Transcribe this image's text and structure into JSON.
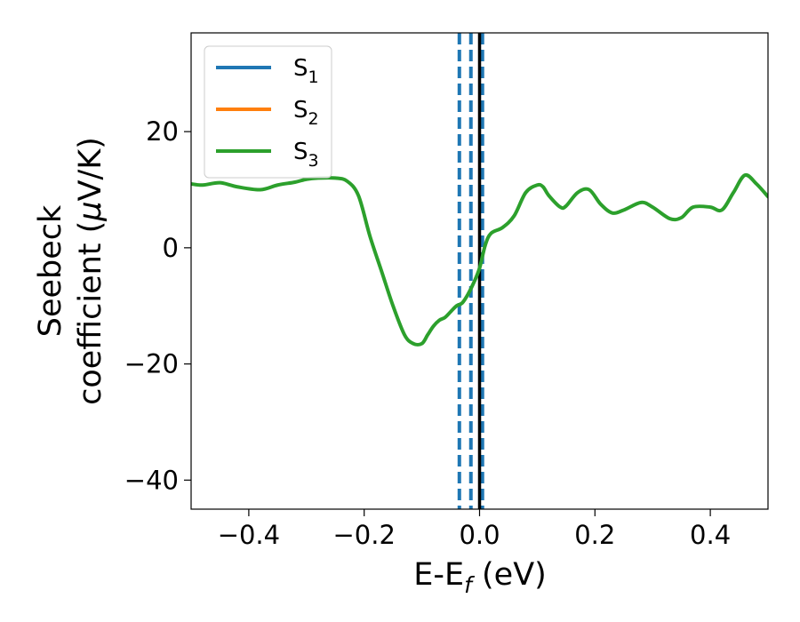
{
  "chart_data": {
    "type": "line",
    "xlabel": {
      "main": "E-E",
      "sub": "f",
      "unit": " (eV)"
    },
    "ylabel": {
      "line1": "Seebeck",
      "line2_pre": "coefficient  (",
      "mu": "μ",
      "line2_post": "V/K)"
    },
    "xlim": [
      -0.5,
      0.5
    ],
    "ylim": [
      -45,
      37
    ],
    "x_ticks": [
      -0.4,
      -0.2,
      0.0,
      0.2,
      0.4
    ],
    "x_tick_labels": [
      "−0.4",
      "−0.2",
      "0.0",
      "0.2",
      "0.4"
    ],
    "y_ticks": [
      -40,
      -20,
      0,
      20
    ],
    "y_tick_labels": [
      "−40",
      "−20",
      "0",
      "20"
    ],
    "grid": false,
    "legend_position": "top-left",
    "series": [
      {
        "name": "S",
        "sub": "1",
        "color": "#1f77b4",
        "x": [],
        "y": []
      },
      {
        "name": "S",
        "sub": "2",
        "color": "#ff7f0e",
        "x": [],
        "y": []
      },
      {
        "name": "S",
        "sub": "3",
        "color": "#2ca02c",
        "x": [
          -0.5,
          -0.48,
          -0.45,
          -0.42,
          -0.38,
          -0.35,
          -0.32,
          -0.3,
          -0.28,
          -0.25,
          -0.23,
          -0.21,
          -0.19,
          -0.17,
          -0.15,
          -0.13,
          -0.115,
          -0.1,
          -0.09,
          -0.08,
          -0.07,
          -0.06,
          -0.05,
          -0.04,
          -0.03,
          -0.02,
          -0.01,
          0.0,
          0.01,
          0.02,
          0.04,
          0.06,
          0.08,
          0.1,
          0.11,
          0.12,
          0.14,
          0.15,
          0.17,
          0.19,
          0.21,
          0.23,
          0.25,
          0.28,
          0.3,
          0.33,
          0.35,
          0.37,
          0.4,
          0.42,
          0.44,
          0.46,
          0.48,
          0.5
        ],
        "y": [
          11.0,
          10.8,
          11.2,
          10.5,
          10.0,
          10.8,
          11.3,
          11.8,
          12.0,
          12.0,
          11.5,
          9.0,
          2.0,
          -4.0,
          -10.0,
          -15.0,
          -16.5,
          -16.5,
          -15.0,
          -13.5,
          -12.5,
          -12.0,
          -11.0,
          -10.0,
          -9.5,
          -8.0,
          -6.0,
          -3.5,
          0.5,
          2.5,
          3.5,
          5.5,
          9.5,
          10.8,
          10.5,
          9.0,
          7.0,
          7.2,
          9.5,
          10.0,
          7.5,
          6.0,
          6.5,
          7.8,
          7.0,
          5.0,
          5.2,
          7.0,
          7.0,
          6.5,
          9.5,
          12.5,
          11.0,
          8.8
        ]
      }
    ],
    "vertical_lines": [
      {
        "x": -0.035,
        "color": "#1f77b4",
        "style": "dashed"
      },
      {
        "x": -0.015,
        "color": "#1f77b4",
        "style": "dashed"
      },
      {
        "x": 0.005,
        "color": "#1f77b4",
        "style": "dashed"
      },
      {
        "x": 0.0,
        "color": "#000000",
        "style": "solid"
      }
    ]
  }
}
